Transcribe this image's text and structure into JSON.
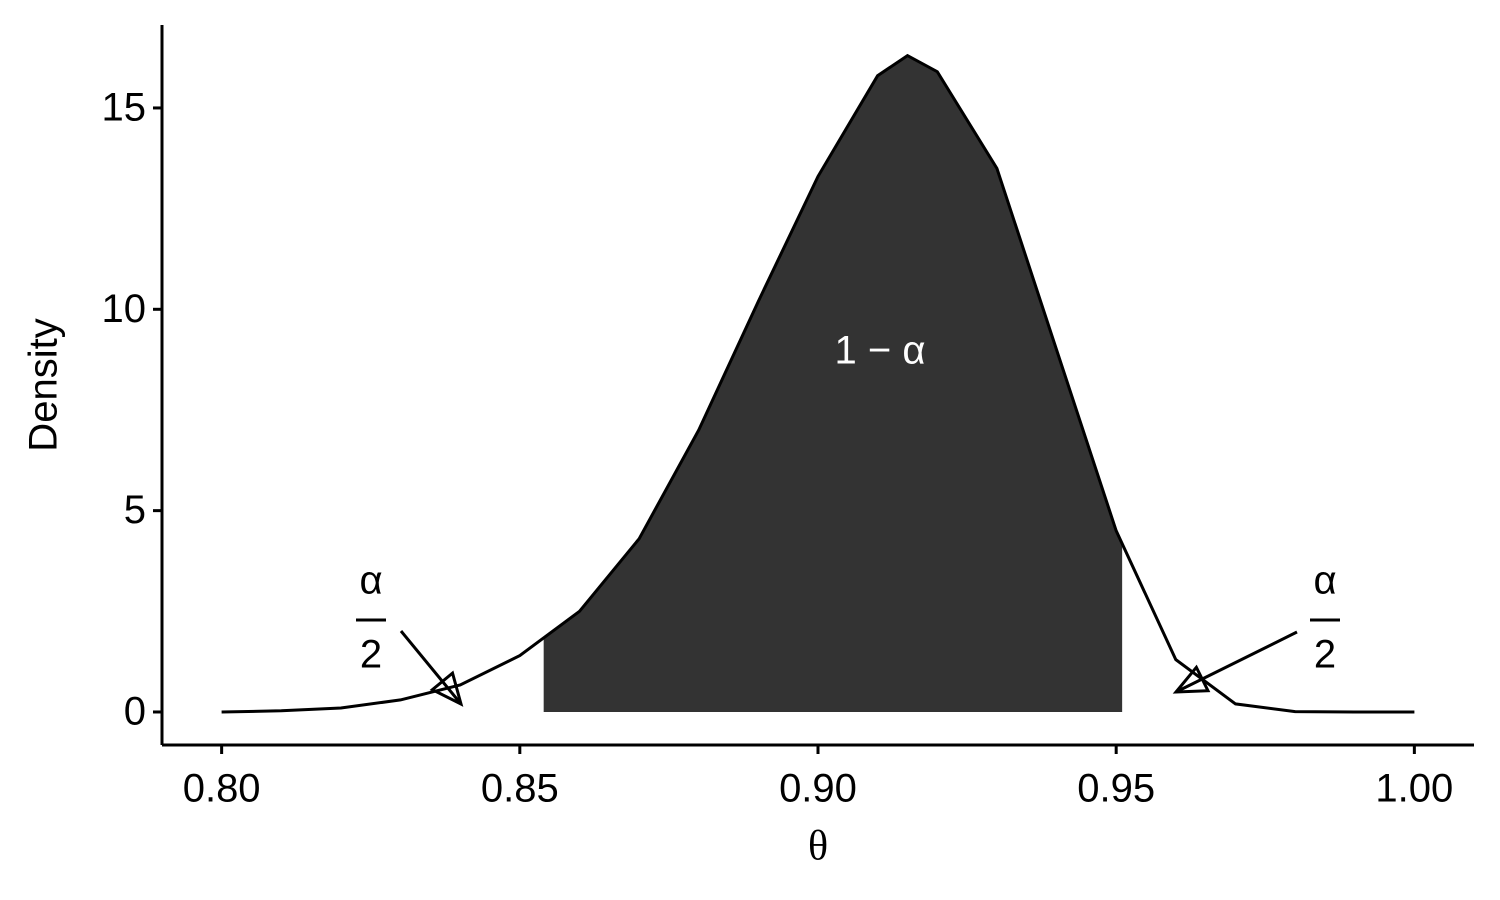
{
  "chart_data": {
    "type": "density",
    "xlabel": "θ",
    "ylabel": "Density",
    "x": [
      0.8,
      0.81,
      0.82,
      0.83,
      0.84,
      0.85,
      0.86,
      0.87,
      0.88,
      0.89,
      0.9,
      0.91,
      0.915,
      0.92,
      0.93,
      0.94,
      0.95,
      0.96,
      0.97,
      0.98,
      0.99,
      1.0
    ],
    "values": [
      0,
      0.03,
      0.1,
      0.3,
      0.67,
      1.4,
      2.5,
      4.3,
      7.0,
      10.2,
      13.3,
      15.8,
      16.3,
      15.9,
      13.5,
      9.0,
      4.5,
      1.3,
      0.2,
      0.01,
      0,
      0
    ],
    "color": "#000000",
    "shade": [
      0.854,
      0.951
    ],
    "shade_color": "#333333",
    "xlim": [
      0.79,
      1.01
    ],
    "ylim": [
      -0.82,
      17.06
    ],
    "xticks": [
      {
        "value": 0.8,
        "label": "0.80"
      },
      0.85,
      {
        "value": 0.9,
        "label": "0.90"
      },
      0.95,
      {
        "value": 1.0,
        "label": "1.00"
      }
    ],
    "yticks": [
      0,
      5,
      10,
      15
    ],
    "annotations": {
      "center": "1 − α",
      "left_num": "α",
      "left_den": "2",
      "right_num": "α",
      "right_den": "2"
    }
  }
}
